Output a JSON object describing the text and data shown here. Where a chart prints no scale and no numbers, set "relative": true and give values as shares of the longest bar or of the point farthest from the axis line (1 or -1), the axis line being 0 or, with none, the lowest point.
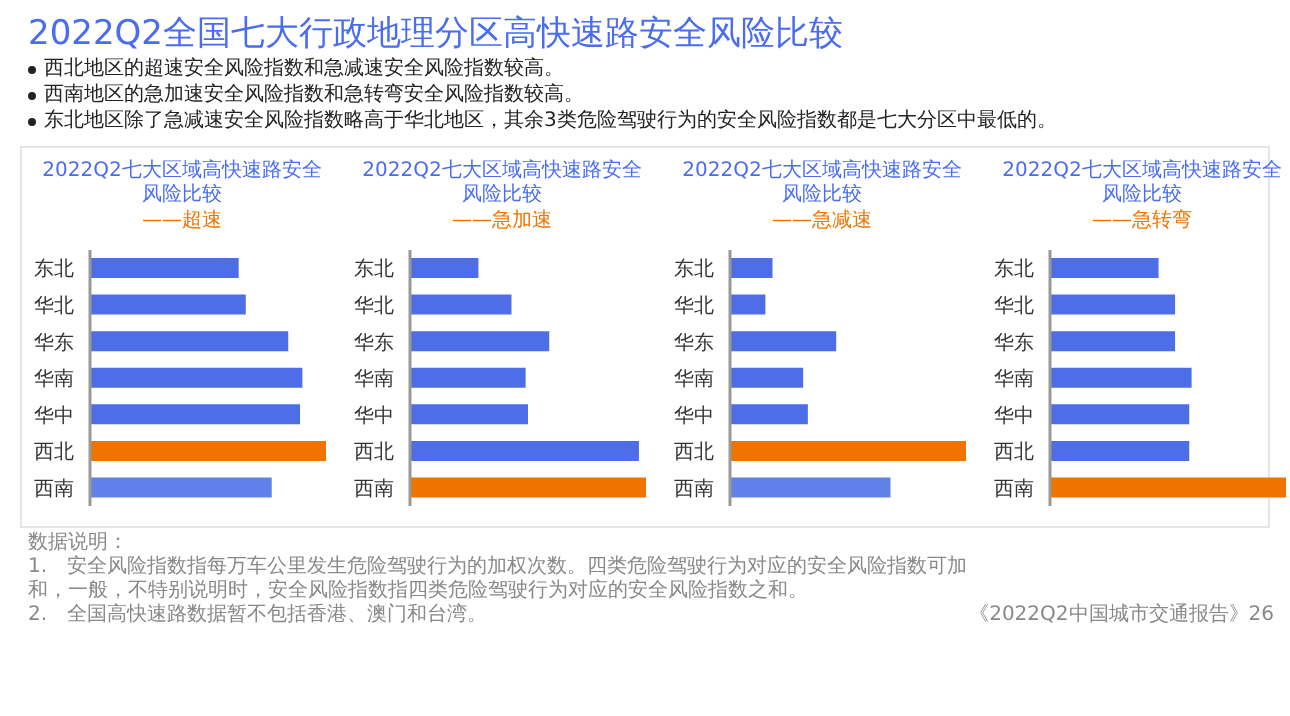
{
  "chart_data": [
    {
      "type": "other",
      "title": "2022Q2全国七大行政地理分区高快速路安全风险比较",
      "annotations": [
        "西北地区的超速安全风险指数和急减速安全风险指数较高。",
        "西南地区的急加速安全风险指数和急转弯安全风险指数较高。",
        "东北地区除了急减速安全风险指数略高于华北地区，其余3类危险驾驶行为的安全风险指数都是七大分区中最低的。"
      ]
    },
    {
      "type": "bar",
      "orientation": "horizontal",
      "relative": true,
      "title": "2022Q2七大区域高快速路安全风险比较",
      "subtitle": "——超速",
      "categories": [
        "东北",
        "华北",
        "华东",
        "华南",
        "华中",
        "西北",
        "西南"
      ],
      "values": [
        0.63,
        0.66,
        0.84,
        0.9,
        0.89,
        1,
        0.77
      ],
      "colors": [
        "#4e6ee8",
        "#4e6ee8",
        "#4e6ee8",
        "#4e6ee8",
        "#4e6ee8",
        "#f07300",
        "#6080ea"
      ]
    },
    {
      "type": "bar",
      "orientation": "horizontal",
      "relative": true,
      "title": "2022Q2七大区域高快速路安全风险比较",
      "subtitle": "——急加速",
      "categories": [
        "东北",
        "华北",
        "华东",
        "华南",
        "华中",
        "西北",
        "西南"
      ],
      "values": [
        0.29,
        0.43,
        0.59,
        0.49,
        0.5,
        0.97,
        1
      ],
      "colors": [
        "#4e6ee8",
        "#4e6ee8",
        "#4e6ee8",
        "#4e6ee8",
        "#4e6ee8",
        "#4e6ee8",
        "#f07300"
      ]
    },
    {
      "type": "bar",
      "orientation": "horizontal",
      "relative": true,
      "title": "2022Q2七大区域高快速路安全风险比较",
      "subtitle": "——急减速",
      "categories": [
        "东北",
        "华北",
        "华东",
        "华南",
        "华中",
        "西北",
        "西南"
      ],
      "values": [
        0.18,
        0.15,
        0.45,
        0.31,
        0.33,
        1,
        0.68
      ],
      "colors": [
        "#4e6ee8",
        "#4e6ee8",
        "#4e6ee8",
        "#4e6ee8",
        "#4e6ee8",
        "#f07300",
        "#6080ea"
      ]
    },
    {
      "type": "bar",
      "orientation": "horizontal",
      "relative": true,
      "title": "2022Q2七大区域高快速路安全风险比较",
      "subtitle": "——急转弯",
      "categories": [
        "东北",
        "华北",
        "华东",
        "华南",
        "华中",
        "西北",
        "西南"
      ],
      "values": [
        0.46,
        0.53,
        0.53,
        0.6,
        0.59,
        0.59,
        1
      ],
      "colors": [
        "#4e6ee8",
        "#4e6ee8",
        "#4e6ee8",
        "#4e6ee8",
        "#4e6ee8",
        "#4e6ee8",
        "#f07300"
      ]
    },
    {
      "type": "other",
      "title": "数据说明：",
      "annotations": [
        "1.　安全风险指数指每万车公里发生危险驾驶行为的加权次数。四类危险驾驶行为对应的安全风险指数可加和，一般，不特别说明时，安全风险指数指四类危险驾驶行为对应的安全风险指数之和。",
        "2.　全国高快速路数据暂不包括香港、澳门和台湾。",
        "《2022Q2中国城市交通报告》26"
      ]
    }
  ]
}
